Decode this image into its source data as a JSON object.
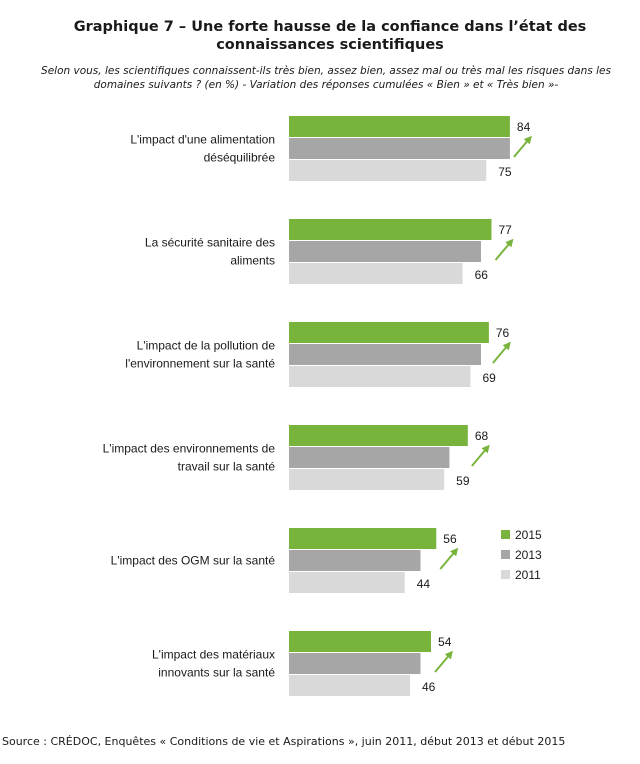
{
  "title_line1": "Graphique 7 – Une forte hausse de la confiance dans l’état des",
  "title_line2": "connaissances scientifiques",
  "subtitle_line1": "Selon vous, les scientifiques connaissent-ils très bien, assez bien, assez mal ou très mal les risques dans les",
  "subtitle_line2": "domaines suivants ? (en %) -  Variation des réponses cumulées « Bien » et « Très bien »-",
  "source": "Source : CRÉDOC, Enquêtes « Conditions de vie et Aspirations », juin 2011, début 2013 et début 2015",
  "chart_data": {
    "type": "bar",
    "orientation": "horizontal",
    "categories": [
      [
        "L'impact d'une alimentation",
        "déséquilibrée"
      ],
      [
        "La sécurité sanitaire des",
        "aliments"
      ],
      [
        "L'impact de la pollution de",
        "l'environnement sur la santé"
      ],
      [
        "L'impact des environnements de",
        "travail sur la santé"
      ],
      [
        "L'impact des OGM sur la santé"
      ],
      [
        "L'impact des matériaux",
        "innovants sur la santé"
      ]
    ],
    "series": [
      {
        "name": "2015",
        "values": [
          84,
          77,
          76,
          68,
          56,
          54
        ],
        "color": "#78b43c",
        "labeled": true
      },
      {
        "name": "2013",
        "values": [
          84,
          73,
          73,
          61,
          50,
          50
        ],
        "color": "#a6a6a6",
        "labeled": false
      },
      {
        "name": "2011",
        "values": [
          75,
          66,
          69,
          59,
          44,
          46
        ],
        "color": "#d9d9d9",
        "labeled": true
      }
    ],
    "xlim": [
      0,
      100
    ],
    "trend_arrows": true,
    "arrow_color": "#78b43c",
    "grid": false,
    "legend_position": "right"
  }
}
